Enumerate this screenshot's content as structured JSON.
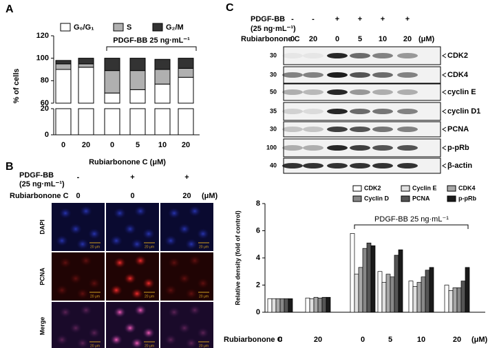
{
  "panels": {
    "a": "A",
    "b": "B",
    "c": "C"
  },
  "chart_data": [
    {
      "type": "bar",
      "stacked": true,
      "y_label": "% of cells",
      "x_label": "Rubiarbonone C (μM)",
      "annotation": "PDGF-BB 25 ng·mL⁻¹",
      "categories": [
        "0",
        "20",
        "0",
        "5",
        "10",
        "20"
      ],
      "series": [
        {
          "name": "G₀/G₁",
          "color": "#ffffff",
          "values": [
            90,
            92,
            69,
            72,
            77,
            83
          ]
        },
        {
          "name": "S",
          "color": "#b0b0b0",
          "values": [
            5,
            3,
            20,
            17,
            13,
            8
          ]
        },
        {
          "name": "G₂/M",
          "color": "#333333",
          "values": [
            3,
            5,
            11,
            11,
            9,
            9
          ]
        }
      ],
      "ylim": [
        0,
        120
      ],
      "axis_break": [
        20,
        60
      ],
      "yticks": [
        0,
        20,
        60,
        80,
        100,
        120
      ]
    },
    {
      "type": "bar",
      "stacked": false,
      "y_label": "Relative density (fold of control)",
      "x_label": "Rubiarbonone C",
      "x_unit": "(μM)",
      "annotation": "PDGF-BB 25 ng·mL⁻¹",
      "categories": [
        "0",
        "20",
        "0",
        "5",
        "10",
        "20"
      ],
      "series": [
        {
          "name": "CDK2",
          "color": "#ffffff",
          "values": [
            1.0,
            1.05,
            5.8,
            3.0,
            2.3,
            2.0
          ]
        },
        {
          "name": "Cyclin E",
          "color": "#e0e0e0",
          "values": [
            1.0,
            1.0,
            2.8,
            2.2,
            1.9,
            1.6
          ]
        },
        {
          "name": "CDK4",
          "color": "#a8a8a8",
          "values": [
            1.0,
            1.1,
            3.3,
            2.8,
            2.2,
            1.8
          ]
        },
        {
          "name": "Cyclin D",
          "color": "#888888",
          "values": [
            1.0,
            1.05,
            4.7,
            2.6,
            2.6,
            1.8
          ]
        },
        {
          "name": "PCNA",
          "color": "#555555",
          "values": [
            1.0,
            1.1,
            5.1,
            4.2,
            3.1,
            2.3
          ]
        },
        {
          "name": "p-pRb",
          "color": "#1a1a1a",
          "values": [
            1.0,
            1.1,
            4.9,
            4.6,
            3.3,
            3.3
          ]
        }
      ],
      "ylim": [
        0,
        8
      ],
      "yticks": [
        0,
        2,
        4,
        6,
        8
      ]
    }
  ],
  "microscopy": {
    "treatment_label": "PDGF-BB",
    "treatment_unit": "(25 ng·mL⁻¹)",
    "compound_label": "Rubiarbonone C",
    "unit": "(μM)",
    "treatment": [
      "-",
      "+",
      "+"
    ],
    "dose": [
      "0",
      "0",
      "20"
    ],
    "rows": [
      "DAPI",
      "PCNA",
      "Merge"
    ],
    "scale_bar": "20 μm"
  },
  "western_blot": {
    "treatment_label": "PDGF-BB",
    "treatment_unit": "(25 ng·mL⁻¹)",
    "compound_label": "Rubiarbonone C",
    "unit": "(μM)",
    "treatment": [
      "-",
      "-",
      "+",
      "+",
      "+",
      "+"
    ],
    "dose": [
      "0",
      "20",
      "0",
      "5",
      "10",
      "20"
    ],
    "bands": [
      {
        "name": "CDK2",
        "mw": "30"
      },
      {
        "name": "CDK4",
        "mw": "30"
      },
      {
        "name": "cyclin E",
        "mw": "50"
      },
      {
        "name": "cyclin D1",
        "mw": "35"
      },
      {
        "name": "PCNA",
        "mw": "30"
      },
      {
        "name": "p-pRb",
        "mw": "100"
      },
      {
        "name": "β-actin",
        "mw": "40"
      }
    ]
  }
}
